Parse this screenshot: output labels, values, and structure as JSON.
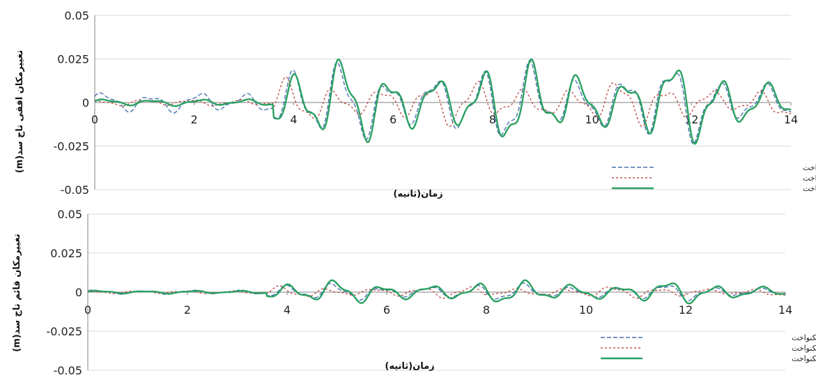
{
  "colors": {
    "series1": "#4a72b0",
    "series2": "#c0504d",
    "series3": "#2aa162",
    "grid": "#d9d9d9",
    "axis": "#808080"
  },
  "chart_data": [
    {
      "type": "line",
      "ylabel": "تغییرمکان افقی تاج سد(m)",
      "xlabel": "زمان(ثانیه)",
      "xlim": [
        0,
        14
      ],
      "ylim": [
        -0.05,
        0.05
      ],
      "x_ticks": [
        "0",
        "2",
        "4",
        "6",
        "8",
        "10",
        "12",
        "14"
      ],
      "y_ticks": [
        "0.05",
        "0.025",
        "0",
        "-0.025",
        "-0.05"
      ],
      "grid": true,
      "legend_position": "bottom-right",
      "series": [
        {
          "name": "تحریک سه مولفه ای غیریکنواخت",
          "style": "dashed",
          "amp_pre": 0.006,
          "amp_post": 0.025
        },
        {
          "name": "تحریک دو مولفه ای غیریکنواخت",
          "style": "dotted",
          "amp_pre": 0.002,
          "amp_post": 0.014
        },
        {
          "name": "تحریک دو مولفه ای یکنواخت",
          "style": "solid",
          "amp_pre": 0.002,
          "amp_post": 0.026
        }
      ]
    },
    {
      "type": "line",
      "ylabel": "تغییرمکان قائم تاج سد(m)",
      "xlabel": "زمان(ثانیه)",
      "xlim": [
        0,
        14
      ],
      "ylim": [
        -0.05,
        0.05
      ],
      "x_ticks": [
        "0",
        "2",
        "4",
        "6",
        "8",
        "10",
        "12",
        "14"
      ],
      "y_ticks": [
        "0.05",
        "0.025",
        "0",
        "-0.025",
        "-0.05"
      ],
      "grid": true,
      "legend_position": "bottom-right",
      "series": [
        {
          "name": "تحریک سه مولفه ای غیریکنواخت",
          "style": "dashed",
          "amp_pre": 0.0015,
          "amp_post": 0.006
        },
        {
          "name": "تحریک دو مولفه ای غیریکنواخت",
          "style": "dotted",
          "amp_pre": 0.001,
          "amp_post": 0.004
        },
        {
          "name": "تحریک دو مولفه ای یکنواخت",
          "style": "solid",
          "amp_pre": 0.001,
          "amp_post": 0.008
        }
      ]
    }
  ]
}
